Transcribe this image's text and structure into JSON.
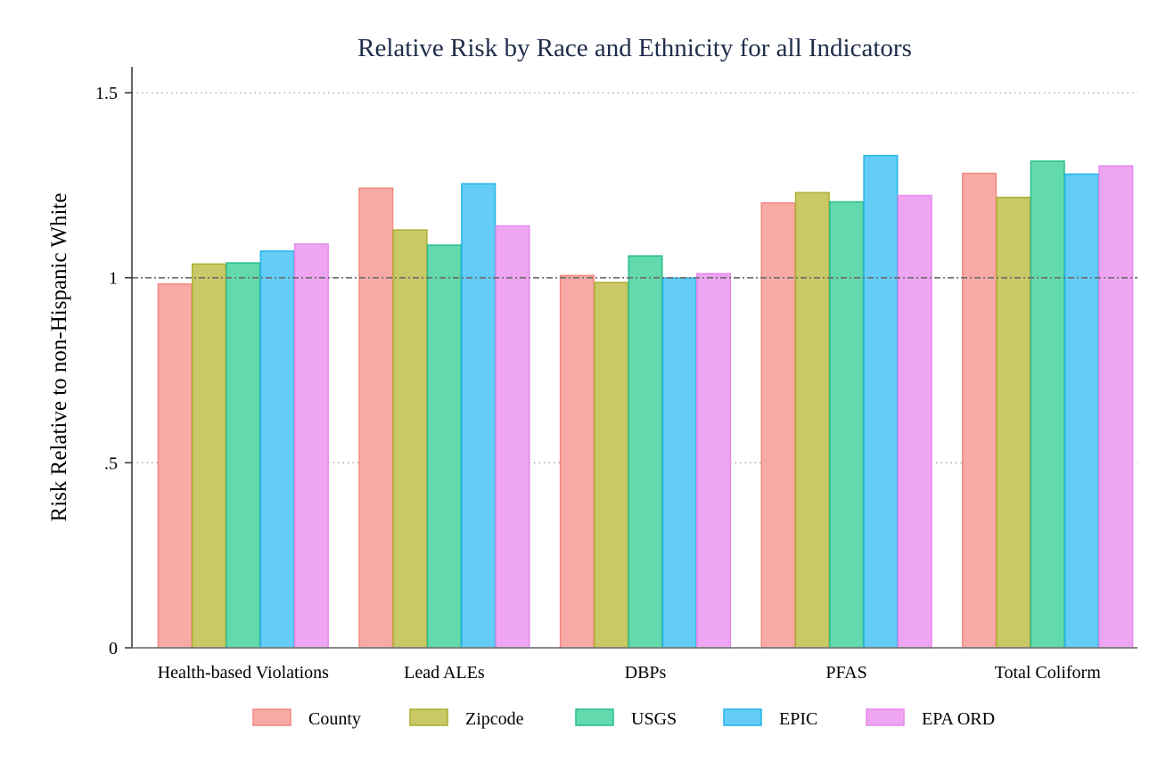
{
  "chart_data": {
    "type": "bar",
    "title": "Relative Risk by Race and Ethnicity for all Indicators",
    "xlabel": "",
    "ylabel": "Risk Relative to non-Hispanic White",
    "ylim": [
      0,
      1.57
    ],
    "yticks": [
      {
        "value": 0,
        "label": "0"
      },
      {
        "value": 0.5,
        "label": ".5"
      },
      {
        "value": 1,
        "label": "1"
      },
      {
        "value": 1.5,
        "label": "1.5"
      }
    ],
    "grid": "horizontal dotted at .5 and 1.5",
    "reference_line": 1,
    "legend_position": "bottom",
    "categories": [
      "Health-based Violations",
      "Lead ALEs",
      "DBPs",
      "PFAS",
      "Total Coliform"
    ],
    "series": [
      {
        "name": "County",
        "fill": "#f8aba6",
        "stroke": "#f28b82",
        "values": [
          0.983,
          1.242,
          1.006,
          1.202,
          1.282
        ]
      },
      {
        "name": "Zipcode",
        "fill": "#c9c967",
        "stroke": "#b0b037",
        "values": [
          1.037,
          1.129,
          0.987,
          1.23,
          1.217
        ]
      },
      {
        "name": "USGS",
        "fill": "#63d9ae",
        "stroke": "#2ec08e",
        "values": [
          1.04,
          1.088,
          1.059,
          1.205,
          1.315
        ]
      },
      {
        "name": "EPIC",
        "fill": "#63cdf7",
        "stroke": "#2ab5ea",
        "values": [
          1.072,
          1.254,
          0.999,
          1.33,
          1.28
        ]
      },
      {
        "name": "EPA ORD",
        "fill": "#eea6f2",
        "stroke": "#e68aeb",
        "values": [
          1.091,
          1.14,
          1.011,
          1.222,
          1.302
        ]
      }
    ]
  }
}
